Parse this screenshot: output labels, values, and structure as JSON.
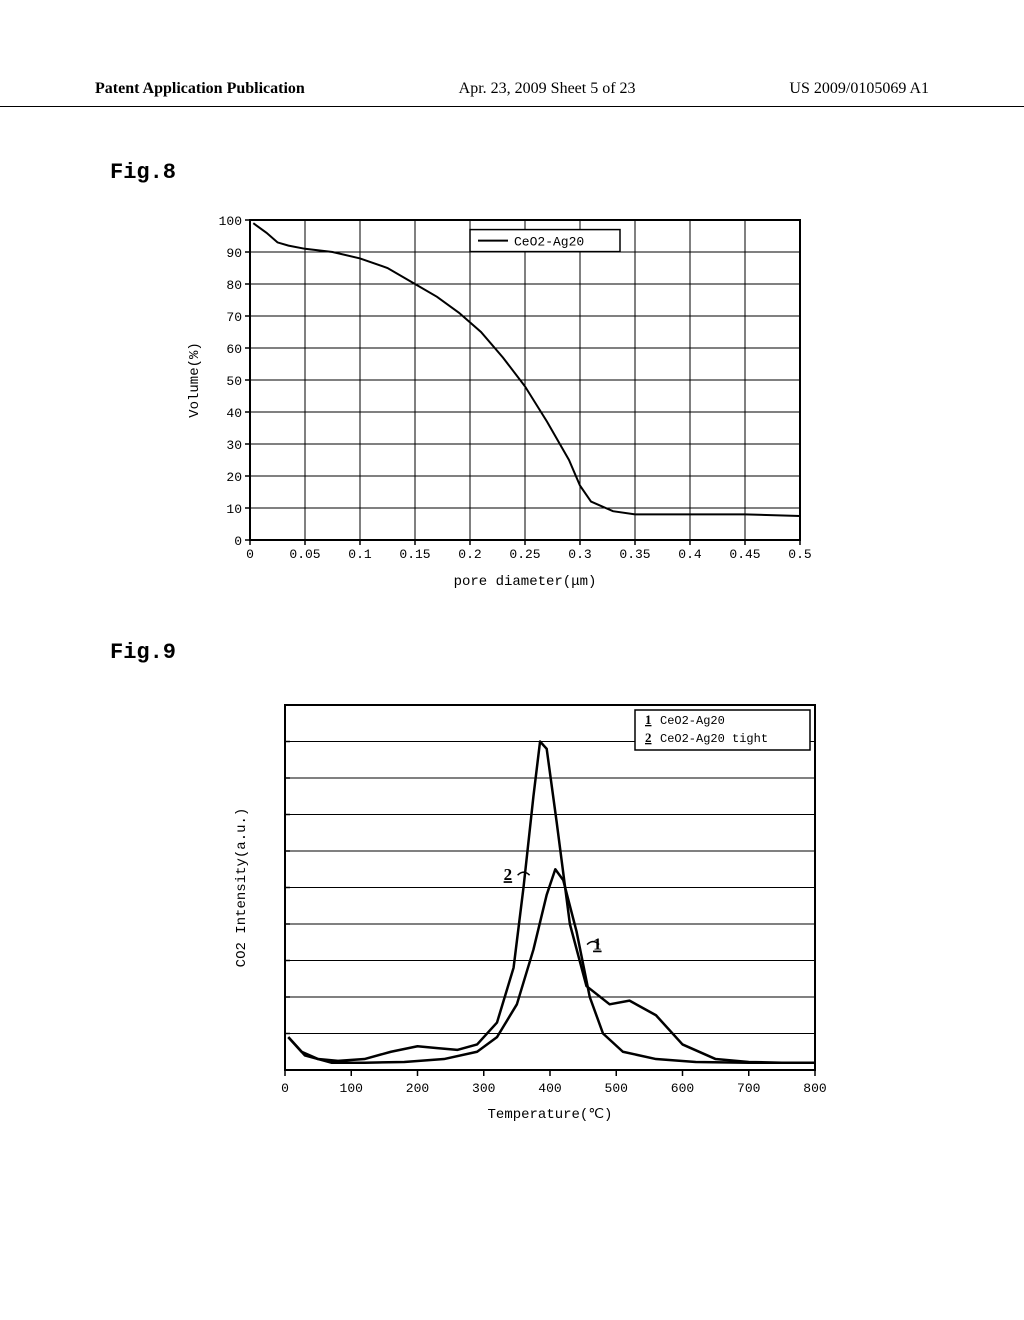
{
  "header": {
    "left": "Patent Application Publication",
    "center": "Apr. 23, 2009  Sheet 5 of 23",
    "right": "US 2009/0105069 A1"
  },
  "fig8": {
    "label": "Fig.8",
    "type": "line",
    "xlabel": "pore diameter(μm)",
    "ylabel": "Volume(%)",
    "xlim": [
      0,
      0.5
    ],
    "ylim": [
      0,
      100
    ],
    "xticks": [
      0,
      0.05,
      0.1,
      0.15,
      0.2,
      0.25,
      0.3,
      0.35,
      0.4,
      0.45,
      0.5
    ],
    "yticks": [
      0,
      10,
      20,
      30,
      40,
      50,
      60,
      70,
      80,
      90,
      100
    ],
    "xtick_labels": [
      "0",
      "0.05",
      "0.1",
      "0.15",
      "0.2",
      "0.25",
      "0.3",
      "0.35",
      "0.4",
      "0.45",
      "0.5"
    ],
    "legend": [
      "CeO2-Ag20"
    ],
    "series": [
      {
        "name": "CeO2-Ag20",
        "color": "#000000",
        "line_width": 2,
        "data": [
          [
            0.003,
            99
          ],
          [
            0.015,
            96
          ],
          [
            0.025,
            93
          ],
          [
            0.035,
            92
          ],
          [
            0.05,
            91
          ],
          [
            0.075,
            90
          ],
          [
            0.1,
            88
          ],
          [
            0.125,
            85
          ],
          [
            0.15,
            80
          ],
          [
            0.17,
            76
          ],
          [
            0.19,
            71
          ],
          [
            0.21,
            65
          ],
          [
            0.23,
            57
          ],
          [
            0.25,
            48
          ],
          [
            0.27,
            37
          ],
          [
            0.29,
            25
          ],
          [
            0.3,
            17
          ],
          [
            0.31,
            12
          ],
          [
            0.33,
            9
          ],
          [
            0.35,
            8
          ],
          [
            0.4,
            8
          ],
          [
            0.45,
            8
          ],
          [
            0.5,
            7.5
          ]
        ]
      }
    ],
    "axis_color": "#000000",
    "grid_color": "#000000",
    "background_color": "#ffffff",
    "label_fontsize": 14,
    "tick_fontsize": 13
  },
  "fig9": {
    "label": "Fig.9",
    "type": "line",
    "xlabel": "Temperature(℃)",
    "ylabel": "CO2 Intensity(a.u.)",
    "xlim": [
      0,
      800
    ],
    "ylim": [
      0,
      10
    ],
    "xticks": [
      0,
      100,
      200,
      300,
      400,
      500,
      600,
      700,
      800
    ],
    "yticks": [
      0,
      1,
      2,
      3,
      4,
      5,
      6,
      7,
      8,
      9,
      10
    ],
    "xtick_labels": [
      "0",
      "100",
      "200",
      "300",
      "400",
      "500",
      "600",
      "700",
      "800"
    ],
    "legend_entries": [
      {
        "marker": "1",
        "text": "CeO2-Ag20"
      },
      {
        "marker": "2",
        "text": "CeO2-Ag20 tight"
      }
    ],
    "curve_labels": [
      {
        "text": "1",
        "x": 465,
        "y": 3.3
      },
      {
        "text": "2",
        "x": 330,
        "y": 5.2
      }
    ],
    "series": [
      {
        "name": "CeO2-Ag20",
        "color": "#000000",
        "line_width": 2.5,
        "data": [
          [
            5,
            0.9
          ],
          [
            25,
            0.5
          ],
          [
            50,
            0.3
          ],
          [
            80,
            0.25
          ],
          [
            120,
            0.3
          ],
          [
            160,
            0.5
          ],
          [
            200,
            0.65
          ],
          [
            230,
            0.6
          ],
          [
            260,
            0.55
          ],
          [
            290,
            0.7
          ],
          [
            320,
            1.3
          ],
          [
            345,
            2.8
          ],
          [
            360,
            5.0
          ],
          [
            375,
            7.5
          ],
          [
            385,
            9.0
          ],
          [
            395,
            8.8
          ],
          [
            410,
            6.8
          ],
          [
            430,
            4.0
          ],
          [
            455,
            2.3
          ],
          [
            490,
            1.8
          ],
          [
            520,
            1.9
          ],
          [
            560,
            1.5
          ],
          [
            600,
            0.7
          ],
          [
            650,
            0.3
          ],
          [
            700,
            0.22
          ],
          [
            750,
            0.2
          ],
          [
            800,
            0.2
          ]
        ]
      },
      {
        "name": "CeO2-Ag20 tight",
        "color": "#000000",
        "line_width": 2.5,
        "data": [
          [
            5,
            0.9
          ],
          [
            30,
            0.4
          ],
          [
            70,
            0.2
          ],
          [
            120,
            0.2
          ],
          [
            180,
            0.22
          ],
          [
            240,
            0.3
          ],
          [
            290,
            0.5
          ],
          [
            320,
            0.9
          ],
          [
            350,
            1.8
          ],
          [
            375,
            3.3
          ],
          [
            395,
            4.8
          ],
          [
            408,
            5.5
          ],
          [
            420,
            5.2
          ],
          [
            440,
            3.8
          ],
          [
            460,
            2.0
          ],
          [
            480,
            1.0
          ],
          [
            510,
            0.5
          ],
          [
            560,
            0.3
          ],
          [
            620,
            0.22
          ],
          [
            700,
            0.2
          ],
          [
            800,
            0.2
          ]
        ]
      }
    ],
    "axis_color": "#000000",
    "grid_color": "#000000",
    "background_color": "#ffffff",
    "label_fontsize": 14,
    "tick_fontsize": 13
  }
}
